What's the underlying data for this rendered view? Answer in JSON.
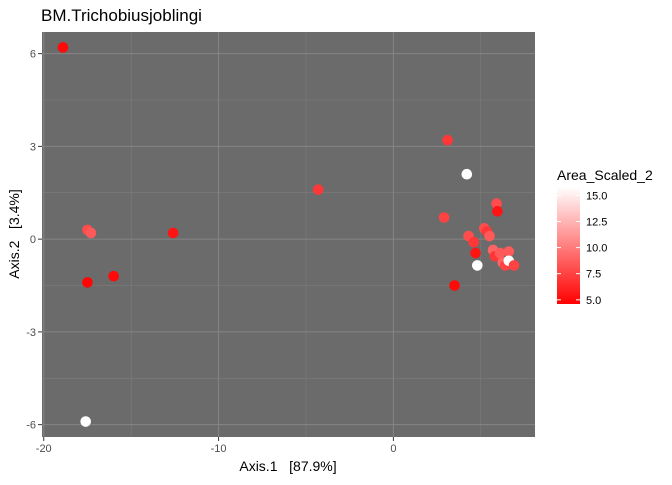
{
  "chart_data": {
    "type": "scatter",
    "title": "BM.Trichobiusjoblingi",
    "xlabel": "Axis.1   [87.9%]",
    "ylabel": "Axis.2   [3.4%]",
    "xlim": [
      -20.1,
      8.1
    ],
    "ylim": [
      -6.4,
      6.7
    ],
    "x_ticks": [
      -20,
      -10,
      0
    ],
    "x_tick_labels": [
      "-20",
      "-10",
      "0"
    ],
    "y_ticks": [
      6,
      3,
      0,
      -3,
      -6
    ],
    "y_tick_labels": [
      "6",
      "3",
      "0",
      "-3",
      "-6"
    ],
    "grid": true,
    "panel_background": "#6b6b6b",
    "legend": {
      "title": "Area_Scaled_2",
      "position": "right",
      "range": [
        4.6,
        15.8
      ],
      "breaks": [
        15.0,
        12.5,
        10.0,
        7.5,
        5.0
      ],
      "break_labels": [
        "15.0",
        "12.5",
        "10.0",
        "7.5",
        "5.0"
      ],
      "low_color": "#ff0000",
      "high_color": "#ffffff"
    },
    "points": [
      {
        "x": -18.9,
        "y": 6.2,
        "area": 5.0
      },
      {
        "x": -17.5,
        "y": 0.3,
        "area": 8.0
      },
      {
        "x": -17.3,
        "y": 0.2,
        "area": 8.5
      },
      {
        "x": -17.5,
        "y": -1.4,
        "area": 4.8
      },
      {
        "x": -17.6,
        "y": -5.9,
        "area": 15.8
      },
      {
        "x": -16.0,
        "y": -1.2,
        "area": 5.0
      },
      {
        "x": -12.6,
        "y": 0.2,
        "area": 5.5
      },
      {
        "x": -4.3,
        "y": 1.6,
        "area": 7.0
      },
      {
        "x": 3.1,
        "y": 3.2,
        "area": 7.0
      },
      {
        "x": 4.2,
        "y": 2.1,
        "area": 15.8
      },
      {
        "x": 2.9,
        "y": 0.7,
        "area": 7.5
      },
      {
        "x": 3.5,
        "y": -1.5,
        "area": 5.0
      },
      {
        "x": 4.3,
        "y": 0.1,
        "area": 8.0
      },
      {
        "x": 4.6,
        "y": -0.1,
        "area": 7.0
      },
      {
        "x": 4.7,
        "y": -0.45,
        "area": 5.5
      },
      {
        "x": 4.8,
        "y": -0.85,
        "area": 15.8
      },
      {
        "x": 5.2,
        "y": 0.35,
        "area": 8.0
      },
      {
        "x": 5.35,
        "y": 0.25,
        "area": 7.0
      },
      {
        "x": 5.5,
        "y": 0.1,
        "area": 8.5
      },
      {
        "x": 5.7,
        "y": -0.35,
        "area": 9.0
      },
      {
        "x": 5.8,
        "y": -0.55,
        "area": 7.0
      },
      {
        "x": 5.9,
        "y": 1.15,
        "area": 8.0
      },
      {
        "x": 5.95,
        "y": 0.9,
        "area": 5.5
      },
      {
        "x": 6.1,
        "y": -0.45,
        "area": 8.5
      },
      {
        "x": 6.25,
        "y": -0.75,
        "area": 9.0
      },
      {
        "x": 6.4,
        "y": -0.85,
        "area": 7.5
      },
      {
        "x": 6.6,
        "y": -0.4,
        "area": 8.5
      },
      {
        "x": 6.6,
        "y": -0.7,
        "area": 15.8
      },
      {
        "x": 6.9,
        "y": -0.85,
        "area": 7.5
      }
    ]
  }
}
